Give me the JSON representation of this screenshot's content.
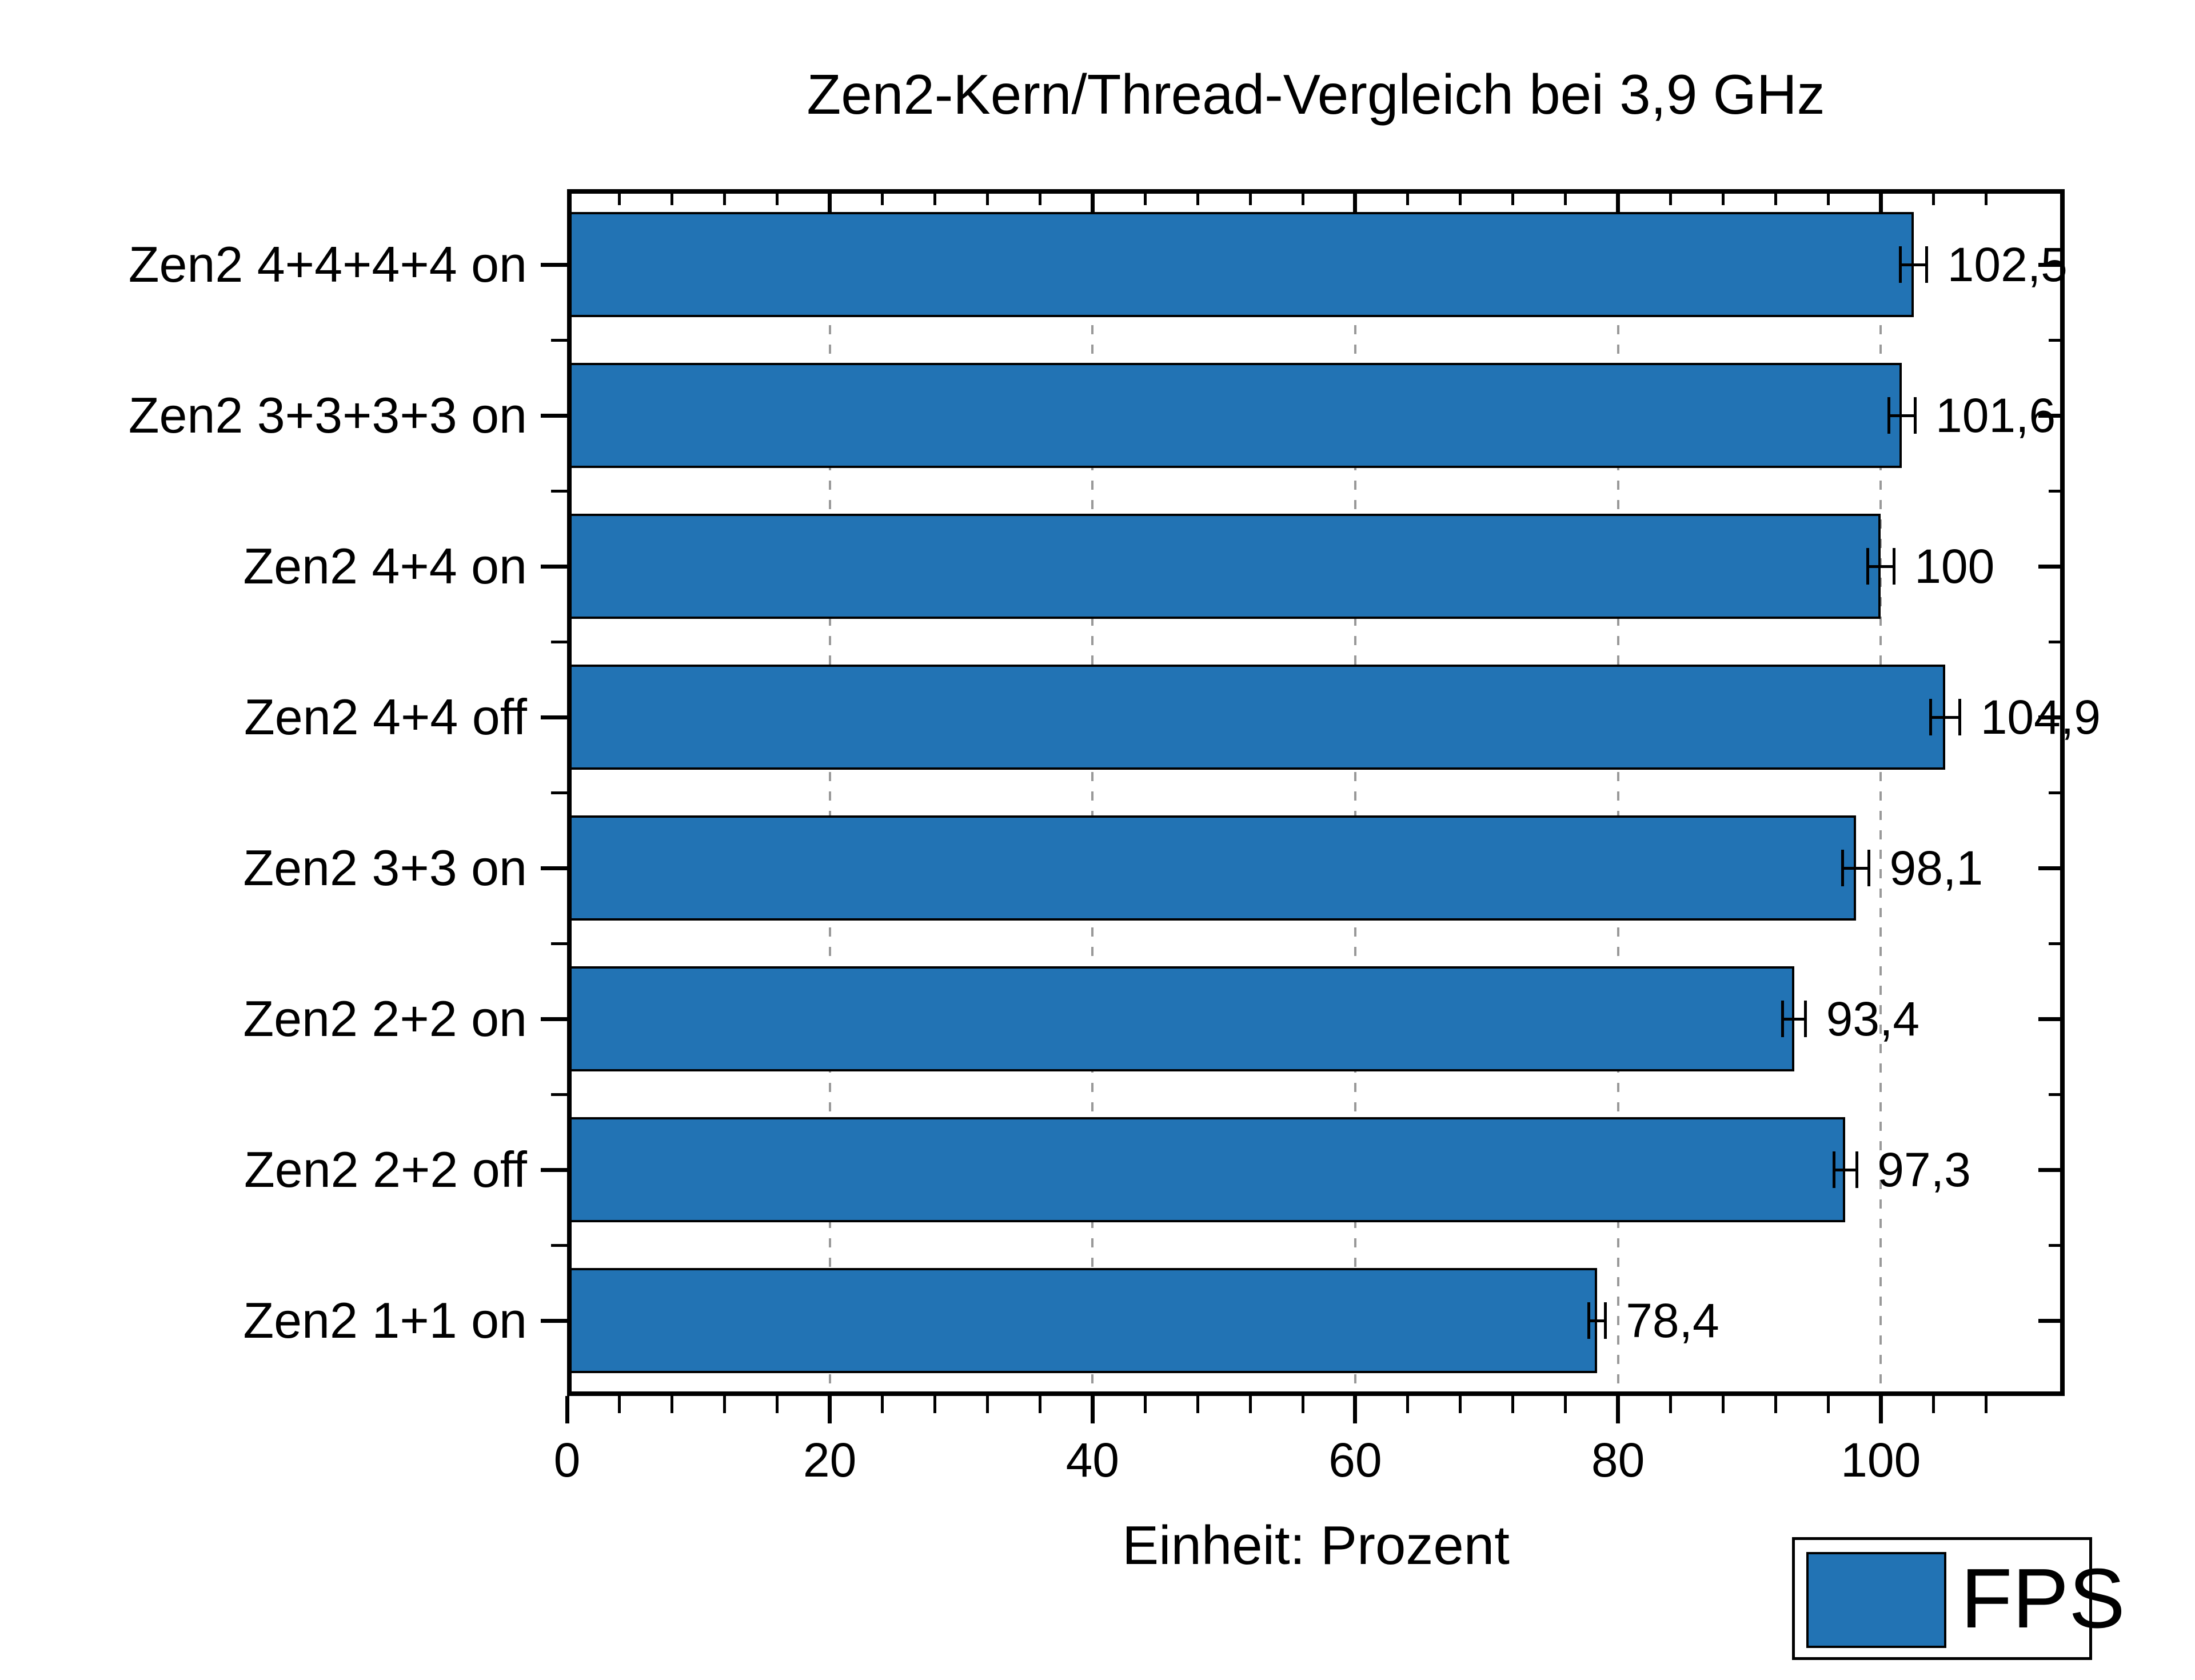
{
  "chart_data": {
    "type": "bar",
    "orientation": "horizontal",
    "title": "Zen2-Kern/Thread-Vergleich bei 3,9 GHz",
    "xlabel": "Einheit: Prozent",
    "categories": [
      "Zen2 4+4+4+4 on",
      "Zen2 3+3+3+3 on",
      "Zen2 4+4 on",
      "Zen2 4+4 off",
      "Zen2 3+3 on",
      "Zen2 2+2 on",
      "Zen2 2+2 off",
      "Zen2 1+1 on"
    ],
    "series": [
      {
        "name": "FPS",
        "values": [
          102.5,
          101.6,
          100,
          104.9,
          98.1,
          93.4,
          97.3,
          78.4
        ],
        "value_labels": [
          "102,5",
          "101,6",
          "100",
          "104,9",
          "98,1",
          "93,4",
          "97,3",
          "78,4"
        ],
        "error_halfwidth": [
          0.8,
          0.8,
          0.8,
          0.9,
          0.8,
          0.7,
          0.7,
          0.5
        ]
      }
    ],
    "xlim": [
      0,
      114
    ],
    "x_major_ticks": [
      0,
      20,
      40,
      60,
      80,
      100
    ],
    "x_major_tick_labels": [
      "0",
      "20",
      "40",
      "60",
      "80",
      "100"
    ],
    "x_minor_tick_step": 4,
    "grid": {
      "vertical_dashed_at_major": true,
      "color": "#999999"
    },
    "legend": {
      "position": "bottom-right",
      "entries": [
        {
          "label": "FPS",
          "color": "#2273b4"
        }
      ]
    },
    "colors": {
      "bar_fill": "#2273b4",
      "bar_border": "#000000",
      "axis": "#000000",
      "gridline": "#999999",
      "background": "#ffffff",
      "text": "#000000"
    }
  }
}
